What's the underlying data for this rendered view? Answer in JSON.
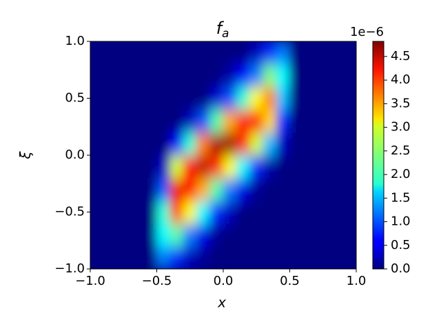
{
  "chart_data": {
    "type": "contourf",
    "title": {
      "text": "f",
      "subscript": "a"
    },
    "x_label": "x",
    "y_label": "ξ",
    "x": [
      -0.95,
      -0.85,
      -0.75,
      -0.65,
      -0.55,
      -0.45,
      -0.35,
      -0.25,
      -0.15,
      -0.05,
      0.05,
      0.15,
      0.25,
      0.35,
      0.45,
      0.55,
      0.65,
      0.75,
      0.85,
      0.95
    ],
    "y": [
      -0.9,
      -0.7,
      -0.5,
      -0.3,
      -0.1,
      0.1,
      0.3,
      0.5,
      0.7,
      0.9
    ],
    "z": [
      [
        0,
        0,
        0,
        0,
        0,
        1.2,
        0.8,
        0.3,
        0.1,
        0,
        0,
        0,
        0,
        0,
        0,
        0,
        0,
        0,
        0,
        0
      ],
      [
        0,
        0,
        0,
        0,
        0,
        1.8,
        2.2,
        1.2,
        0.5,
        0.1,
        0,
        0,
        0,
        0,
        0,
        0,
        0,
        0,
        0,
        0
      ],
      [
        0,
        0,
        0,
        0,
        0,
        2.0,
        3.8,
        3.0,
        1.8,
        0.8,
        0.3,
        0,
        0,
        0,
        0,
        0,
        0,
        0,
        0,
        0
      ],
      [
        0,
        0,
        0,
        0,
        0,
        1.0,
        4.3,
        4.2,
        3.4,
        2.2,
        1.2,
        0.5,
        0.1,
        0,
        0,
        0,
        0,
        0,
        0,
        0
      ],
      [
        0,
        0,
        0,
        0,
        0,
        0.3,
        2.8,
        4.2,
        4.5,
        4.0,
        3.0,
        1.8,
        0.8,
        0.2,
        0,
        0,
        0,
        0,
        0,
        0
      ],
      [
        0,
        0,
        0,
        0,
        0,
        0,
        0.6,
        2.0,
        3.6,
        4.6,
        4.7,
        4.0,
        2.8,
        1.5,
        0.3,
        0,
        0,
        0,
        0,
        0
      ],
      [
        0,
        0,
        0,
        0,
        0,
        0,
        0,
        0.3,
        1.0,
        2.2,
        3.4,
        4.1,
        4.2,
        3.2,
        0.8,
        0,
        0,
        0,
        0,
        0
      ],
      [
        0,
        0,
        0,
        0,
        0,
        0,
        0,
        0,
        0,
        0.4,
        1.0,
        2.0,
        3.0,
        3.6,
        1.5,
        0,
        0,
        0,
        0,
        0
      ],
      [
        0,
        0,
        0,
        0,
        0,
        0,
        0,
        0,
        0,
        0,
        0.2,
        0.6,
        1.2,
        2.4,
        1.8,
        0,
        0,
        0,
        0,
        0
      ],
      [
        0,
        0,
        0,
        0,
        0,
        0,
        0,
        0,
        0,
        0,
        0,
        0,
        0.3,
        0.8,
        1.2,
        0,
        0,
        0,
        0,
        0
      ]
    ],
    "colormap": "jet",
    "xlim": [
      -1,
      1
    ],
    "ylim": [
      -1,
      1
    ],
    "clim": [
      0,
      4.82
    ],
    "xticks": [
      {
        "value": -1,
        "label": "−1.0"
      },
      {
        "value": -0.5,
        "label": "−0.5"
      },
      {
        "value": 0,
        "label": "0.0"
      },
      0.5,
      {
        "value": 1,
        "label": "1.0"
      }
    ],
    "yticks": [
      {
        "value": -1,
        "label": "−1.0"
      },
      {
        "value": -0.5,
        "label": "−0.5"
      },
      {
        "value": 0,
        "label": "0.0"
      },
      0.5,
      {
        "value": 1,
        "label": "1.0"
      }
    ],
    "cticks": [
      {
        "value": 0,
        "label": "0.0"
      },
      0.5,
      {
        "value": 1,
        "label": "1.0"
      },
      1.5,
      {
        "value": 2,
        "label": "2.0"
      },
      2.5,
      {
        "value": 3,
        "label": "3.0"
      },
      3.5,
      {
        "value": 4,
        "label": "4.0"
      },
      4.5
    ],
    "colorbar_offset_label": "1e−6"
  }
}
